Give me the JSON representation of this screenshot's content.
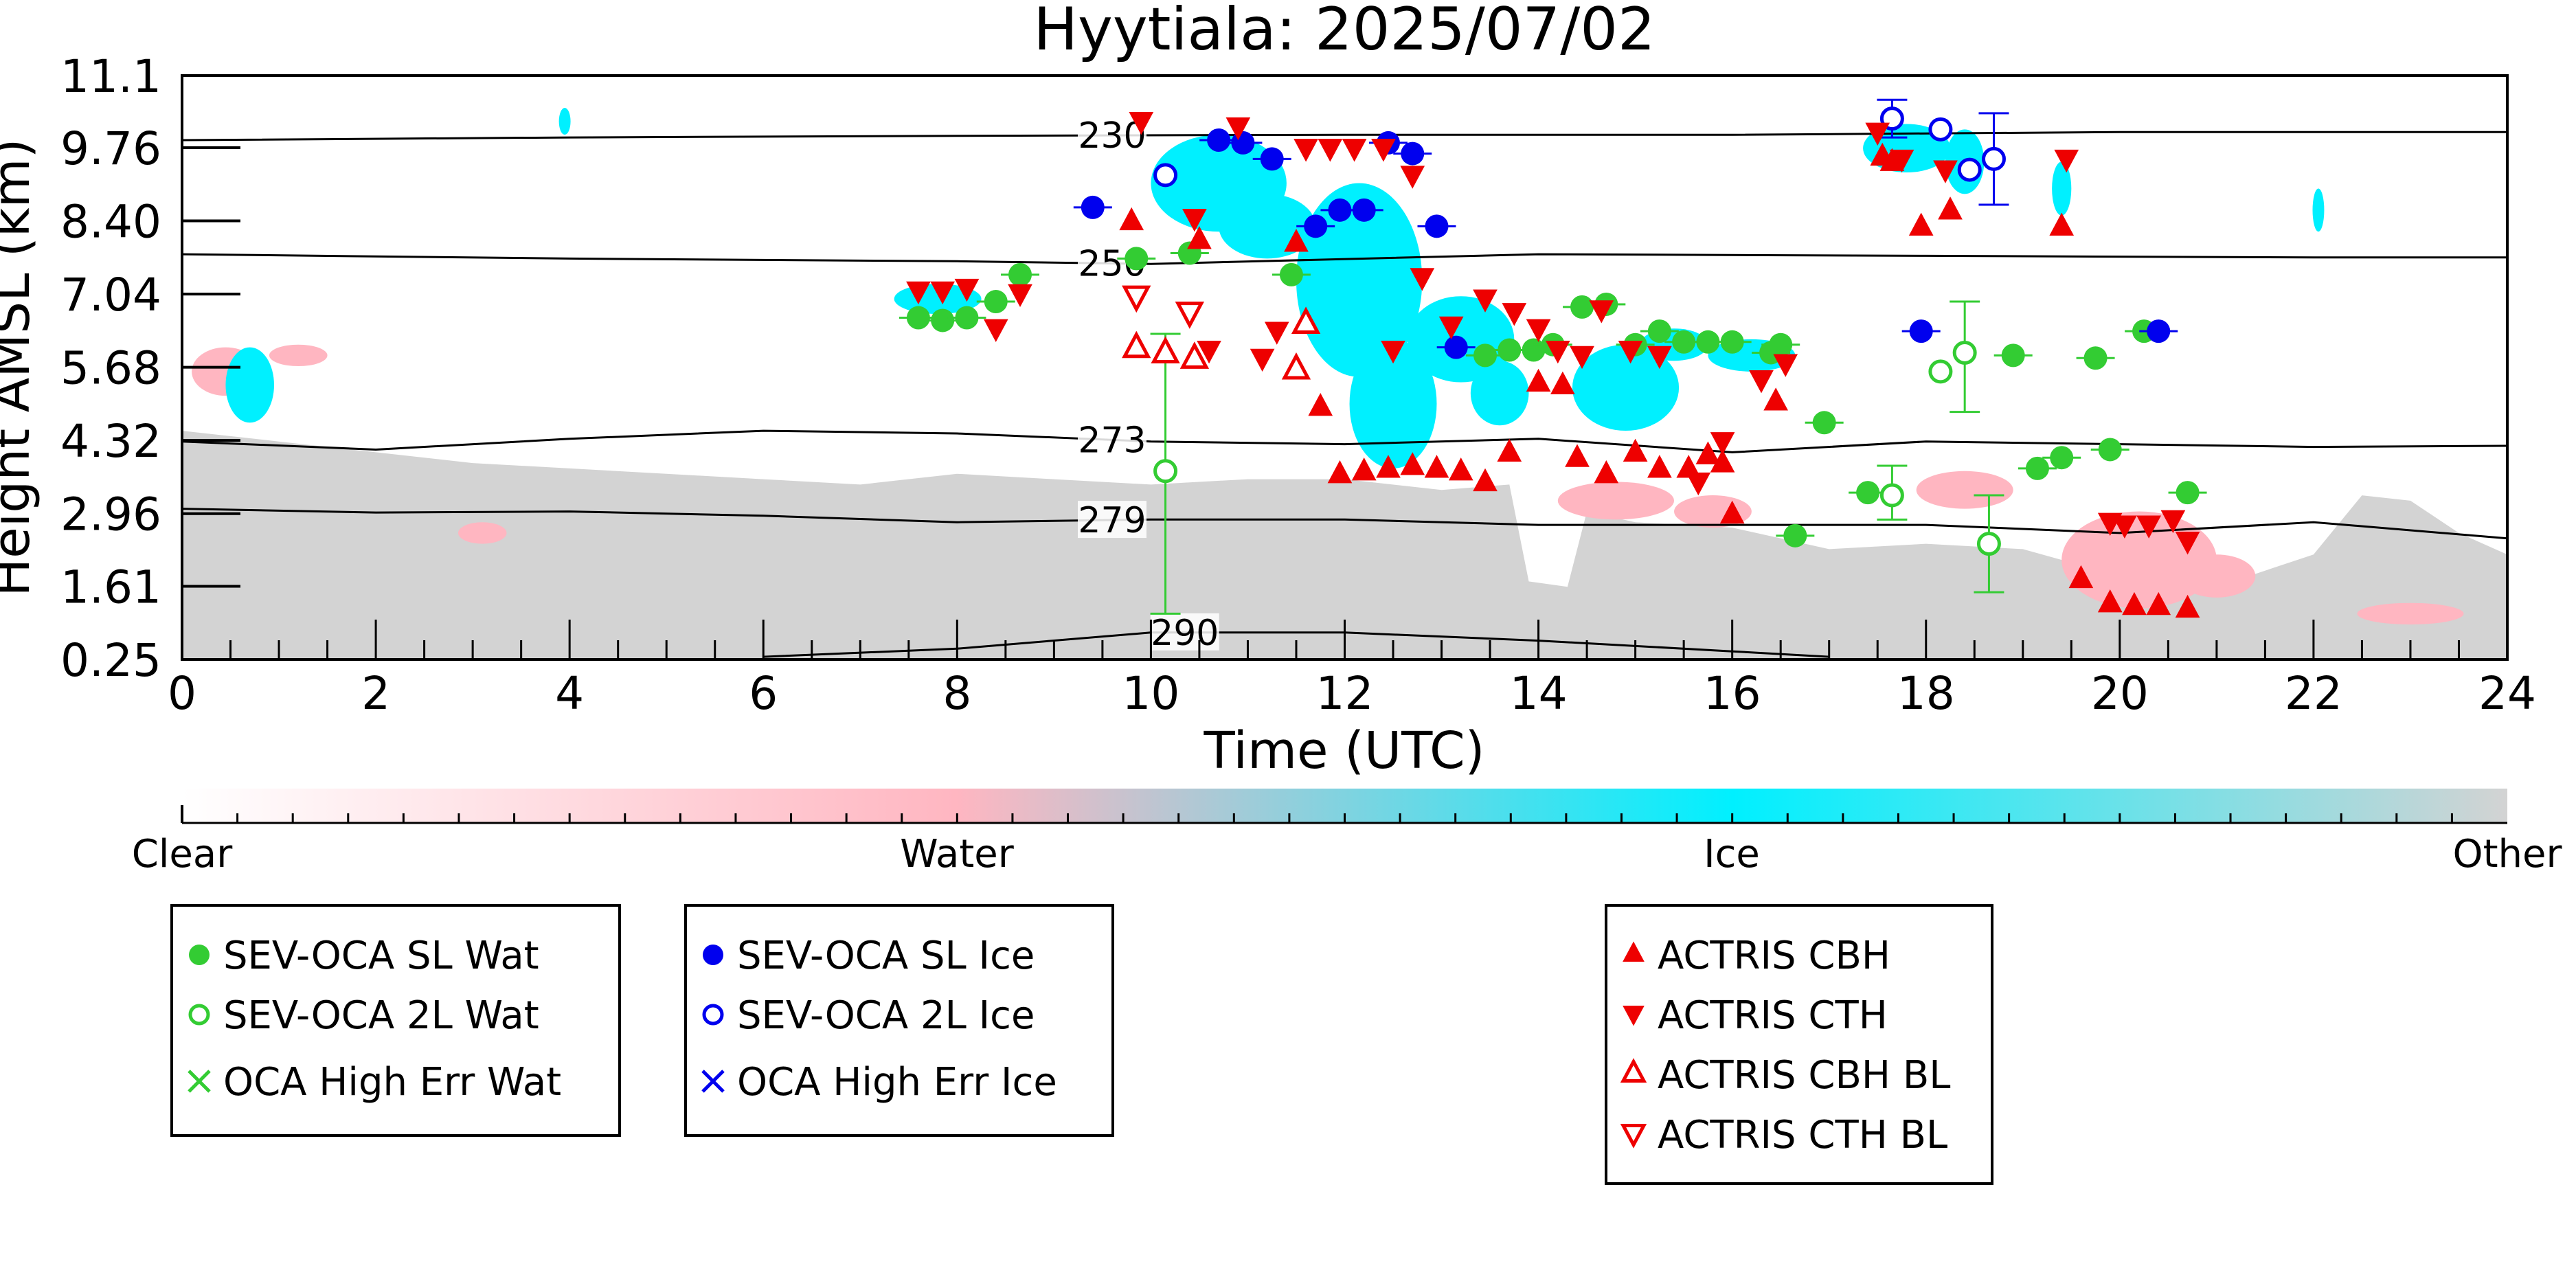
{
  "chart_data": {
    "type": "scatter",
    "title": "Hyytiala: 2025/07/02",
    "xlabel": "Time (UTC)",
    "ylabel": "Height AMSL (km)",
    "xlim": [
      0,
      24
    ],
    "ylim": [
      0.25,
      11.1
    ],
    "x_ticks": [
      "0",
      "2",
      "4",
      "6",
      "8",
      "10",
      "12",
      "14",
      "16",
      "18",
      "20",
      "22",
      "24"
    ],
    "y_ticks": [
      "0.25",
      "1.61",
      "2.96",
      "4.32",
      "5.68",
      "7.04",
      "8.40",
      "9.76",
      "11.1"
    ],
    "colorbar": {
      "labels": [
        "Clear",
        "Water",
        "Ice",
        "Other"
      ],
      "colors": {
        "clear": "#ffffff",
        "water": "#ffb6c1",
        "ice": "#00f0ff",
        "other": "#d3d3d3"
      }
    },
    "temperature_contours": [
      {
        "label": "230",
        "x": [
          0,
          4,
          8,
          12,
          16,
          20,
          24
        ],
        "y": [
          9.9,
          9.95,
          9.98,
          10.0,
          10.0,
          10.05,
          10.05
        ]
      },
      {
        "label": "250",
        "x": [
          0,
          4,
          8,
          10,
          14,
          18,
          22,
          24
        ],
        "y": [
          7.78,
          7.7,
          7.65,
          7.6,
          7.78,
          7.75,
          7.72,
          7.72
        ]
      },
      {
        "label": "273",
        "x": [
          0,
          2,
          4,
          6,
          8,
          10,
          12,
          14,
          16,
          18,
          20,
          22,
          24
        ],
        "y": [
          4.3,
          4.15,
          4.35,
          4.5,
          4.45,
          4.3,
          4.25,
          4.35,
          4.1,
          4.3,
          4.25,
          4.2,
          4.22
        ]
      },
      {
        "label": "279",
        "x": [
          0,
          2,
          4,
          6,
          8,
          10,
          12,
          14,
          16,
          18,
          20,
          22,
          24
        ],
        "y": [
          3.05,
          2.98,
          3.0,
          2.92,
          2.8,
          2.85,
          2.85,
          2.75,
          2.75,
          2.75,
          2.6,
          2.8,
          2.5
        ]
      },
      {
        "label": "290",
        "x": [
          6,
          8,
          10,
          12,
          14,
          16,
          17
        ],
        "y": [
          0.3,
          0.45,
          0.75,
          0.75,
          0.6,
          0.4,
          0.3
        ]
      }
    ],
    "series": [
      {
        "name": "SEV-OCA SL Wat",
        "marker": "circle-filled",
        "color": "#33cc33",
        "points": [
          [
            7.6,
            6.6
          ],
          [
            7.85,
            6.55
          ],
          [
            8.1,
            6.6
          ],
          [
            8.4,
            6.9
          ],
          [
            8.65,
            7.4
          ],
          [
            9.85,
            7.7
          ],
          [
            10.4,
            7.8
          ],
          [
            11.45,
            7.4
          ],
          [
            13.45,
            5.9
          ],
          [
            13.7,
            6.0
          ],
          [
            13.95,
            6.0
          ],
          [
            14.15,
            6.1
          ],
          [
            14.45,
            6.8
          ],
          [
            14.7,
            6.85
          ],
          [
            15.0,
            6.1
          ],
          [
            15.25,
            6.35
          ],
          [
            15.5,
            6.15
          ],
          [
            15.75,
            6.15
          ],
          [
            16.0,
            6.15
          ],
          [
            16.4,
            5.95
          ],
          [
            16.5,
            6.1
          ],
          [
            16.65,
            2.55
          ],
          [
            16.95,
            4.65
          ],
          [
            17.4,
            3.35
          ],
          [
            18.9,
            5.9
          ],
          [
            19.15,
            3.8
          ],
          [
            19.4,
            4.0
          ],
          [
            19.75,
            5.85
          ],
          [
            19.9,
            4.15
          ],
          [
            20.25,
            6.35
          ],
          [
            20.7,
            3.35
          ]
        ]
      },
      {
        "name": "SEV-OCA 2L Wat",
        "marker": "circle-open",
        "color": "#33cc33",
        "points": [
          [
            10.15,
            3.75
          ],
          [
            17.65,
            3.3
          ],
          [
            18.15,
            5.6
          ],
          [
            18.4,
            5.95
          ],
          [
            18.65,
            2.4
          ]
        ],
        "errors": [
          [
            10.15,
            1.1,
            6.3
          ],
          [
            17.65,
            2.85,
            3.85
          ],
          [
            18.4,
            4.85,
            6.9
          ],
          [
            18.65,
            1.5,
            3.3
          ]
        ]
      },
      {
        "name": "OCA High Err Wat",
        "marker": "x",
        "color": "#33cc33",
        "points": []
      },
      {
        "name": "SEV-OCA SL Ice",
        "marker": "circle-filled",
        "color": "#0000ee",
        "points": [
          [
            9.4,
            8.65
          ],
          [
            10.7,
            9.9
          ],
          [
            10.95,
            9.85
          ],
          [
            11.25,
            9.55
          ],
          [
            11.7,
            8.3
          ],
          [
            11.95,
            8.6
          ],
          [
            12.2,
            8.6
          ],
          [
            12.45,
            9.85
          ],
          [
            12.7,
            9.65
          ],
          [
            12.95,
            8.3
          ],
          [
            13.15,
            6.05
          ],
          [
            17.95,
            6.35
          ],
          [
            20.4,
            6.35
          ]
        ]
      },
      {
        "name": "SEV-OCA 2L Ice",
        "marker": "circle-open",
        "color": "#0000ee",
        "points": [
          [
            10.15,
            9.25
          ],
          [
            17.65,
            10.3
          ],
          [
            18.15,
            10.1
          ],
          [
            18.45,
            9.35
          ],
          [
            18.7,
            9.55
          ]
        ],
        "errors": [
          [
            17.65,
            9.95,
            10.65
          ],
          [
            18.7,
            8.7,
            10.4
          ]
        ]
      },
      {
        "name": "OCA High Err Ice",
        "marker": "x",
        "color": "#0000ee",
        "points": []
      },
      {
        "name": "ACTRIS CBH",
        "marker": "triangle-up-filled",
        "color": "#ee0000",
        "points": [
          [
            9.8,
            8.4
          ],
          [
            10.5,
            8.05
          ],
          [
            11.5,
            8.0
          ],
          [
            11.75,
            4.95
          ],
          [
            11.95,
            3.7
          ],
          [
            12.2,
            3.75
          ],
          [
            12.45,
            3.8
          ],
          [
            12.7,
            3.85
          ],
          [
            12.95,
            3.8
          ],
          [
            13.2,
            3.75
          ],
          [
            13.45,
            3.55
          ],
          [
            13.7,
            4.1
          ],
          [
            14.0,
            5.4
          ],
          [
            14.25,
            5.35
          ],
          [
            14.4,
            4.0
          ],
          [
            14.7,
            3.7
          ],
          [
            15.0,
            4.1
          ],
          [
            15.25,
            3.8
          ],
          [
            15.55,
            3.8
          ],
          [
            15.75,
            4.05
          ],
          [
            15.9,
            3.9
          ],
          [
            16.0,
            2.95
          ],
          [
            16.45,
            5.05
          ],
          [
            17.55,
            9.6
          ],
          [
            17.65,
            9.5
          ],
          [
            17.95,
            8.3
          ],
          [
            18.25,
            8.6
          ],
          [
            19.4,
            8.3
          ],
          [
            19.6,
            1.75
          ],
          [
            19.9,
            1.3
          ],
          [
            20.15,
            1.25
          ],
          [
            20.4,
            1.25
          ],
          [
            20.7,
            1.2
          ]
        ]
      },
      {
        "name": "ACTRIS CTH",
        "marker": "triangle-down-filled",
        "color": "#ee0000",
        "points": [
          [
            7.6,
            7.1
          ],
          [
            7.85,
            7.1
          ],
          [
            8.1,
            7.15
          ],
          [
            8.4,
            6.4
          ],
          [
            8.65,
            7.05
          ],
          [
            9.9,
            10.25
          ],
          [
            10.45,
            8.45
          ],
          [
            10.6,
            6.0
          ],
          [
            10.9,
            10.15
          ],
          [
            11.15,
            5.85
          ],
          [
            11.3,
            6.35
          ],
          [
            11.6,
            9.75
          ],
          [
            11.85,
            9.75
          ],
          [
            12.1,
            9.75
          ],
          [
            12.4,
            9.75
          ],
          [
            12.5,
            6.0
          ],
          [
            12.7,
            9.25
          ],
          [
            12.8,
            7.35
          ],
          [
            13.1,
            6.45
          ],
          [
            13.45,
            6.95
          ],
          [
            13.75,
            6.7
          ],
          [
            14.0,
            6.4
          ],
          [
            14.2,
            6.0
          ],
          [
            14.45,
            5.9
          ],
          [
            14.65,
            6.75
          ],
          [
            14.95,
            6.0
          ],
          [
            15.25,
            5.9
          ],
          [
            15.65,
            3.55
          ],
          [
            15.9,
            4.3
          ],
          [
            16.3,
            5.45
          ],
          [
            16.55,
            5.75
          ],
          [
            17.5,
            10.05
          ],
          [
            17.75,
            9.55
          ],
          [
            18.2,
            9.35
          ],
          [
            19.45,
            9.55
          ],
          [
            19.9,
            2.8
          ],
          [
            20.05,
            2.75
          ],
          [
            20.3,
            2.75
          ],
          [
            20.55,
            2.85
          ],
          [
            20.7,
            2.45
          ]
        ]
      },
      {
        "name": "ACTRIS CBH BL",
        "marker": "triangle-up-open",
        "color": "#ee0000",
        "points": [
          [
            9.85,
            6.05
          ],
          [
            10.15,
            5.95
          ],
          [
            10.45,
            5.85
          ],
          [
            11.5,
            5.65
          ],
          [
            11.6,
            6.5
          ]
        ]
      },
      {
        "name": "ACTRIS CTH BL",
        "marker": "triangle-down-open",
        "color": "#ee0000",
        "points": [
          [
            9.85,
            7.0
          ],
          [
            10.4,
            6.7
          ]
        ]
      }
    ]
  },
  "legends": [
    {
      "items": [
        {
          "label": "SEV-OCA SL Wat",
          "marker": "circle-filled",
          "color": "#33cc33"
        },
        {
          "label": "SEV-OCA 2L Wat",
          "marker": "circle-open",
          "color": "#33cc33"
        },
        {
          "label": "OCA High Err Wat",
          "marker": "x",
          "color": "#33cc33"
        }
      ]
    },
    {
      "items": [
        {
          "label": "SEV-OCA SL Ice",
          "marker": "circle-filled",
          "color": "#0000ee"
        },
        {
          "label": "SEV-OCA 2L Ice",
          "marker": "circle-open",
          "color": "#0000ee"
        },
        {
          "label": "OCA High Err Ice",
          "marker": "x",
          "color": "#0000ee"
        }
      ]
    },
    {
      "items": [
        {
          "label": "ACTRIS CBH",
          "marker": "triangle-up-filled",
          "color": "#ee0000"
        },
        {
          "label": "ACTRIS CTH",
          "marker": "triangle-down-filled",
          "color": "#ee0000"
        },
        {
          "label": "ACTRIS CBH BL",
          "marker": "triangle-up-open",
          "color": "#ee0000"
        },
        {
          "label": "ACTRIS CTH BL",
          "marker": "triangle-down-open",
          "color": "#ee0000"
        }
      ]
    }
  ]
}
